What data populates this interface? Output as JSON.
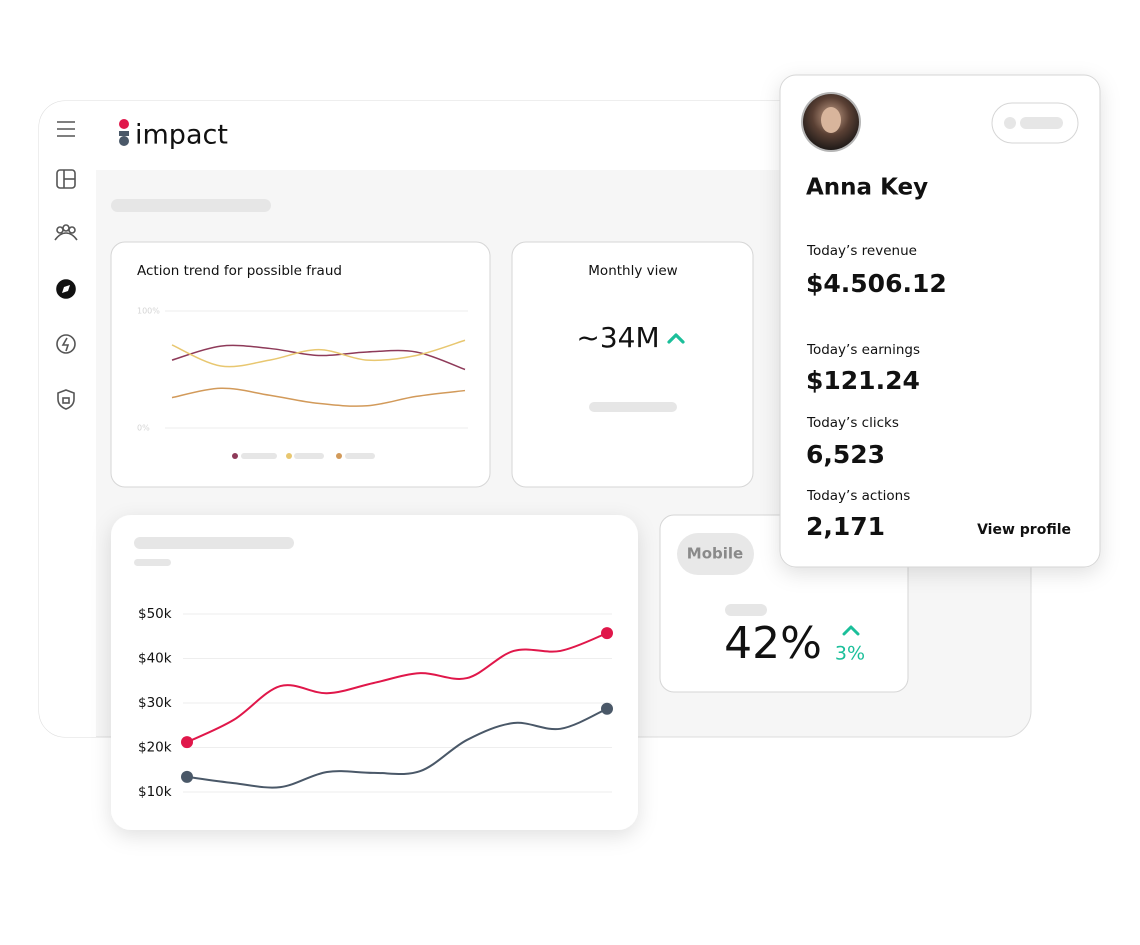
{
  "brand": "impact",
  "fraud_chart": {
    "type": "line",
    "title": "Action trend for possible fraud",
    "ylim": [
      0,
      100
    ],
    "yticks": [
      {
        "value": 0,
        "label": "0%"
      },
      {
        "value": 100,
        "label": "100%"
      }
    ],
    "series": [
      {
        "color": "#8e3a59",
        "values": [
          58,
          70,
          68,
          62,
          65,
          65,
          50
        ]
      },
      {
        "color": "#e8c770",
        "values": [
          71,
          53,
          58,
          67,
          58,
          62,
          75
        ]
      },
      {
        "color": "#d29a5a",
        "values": [
          26,
          34,
          28,
          21,
          19,
          27,
          32
        ]
      }
    ]
  },
  "monthly_view": {
    "title": "Monthly view",
    "value": "~34M"
  },
  "mobile": {
    "label": "Mobile",
    "value": "42%",
    "change": "3%"
  },
  "profile": {
    "name": "Anna Key",
    "stats": [
      {
        "label": "Today’s revenue",
        "value": "$4.506.12"
      },
      {
        "label": "Today’s earnings",
        "value": "$121.24"
      },
      {
        "label": "Today’s clicks",
        "value": "6,523"
      },
      {
        "label": "Today’s actions",
        "value": "2,171"
      }
    ],
    "link": "View profile"
  },
  "revenue_chart": {
    "type": "line",
    "ylim": [
      10000,
      50000
    ],
    "yticks": [
      {
        "value": 10000,
        "label": "$10k"
      },
      {
        "value": 20000,
        "label": "$20k"
      },
      {
        "value": 30000,
        "label": "$30k"
      },
      {
        "value": 40000,
        "label": "$40k"
      },
      {
        "value": 50000,
        "label": "$50k"
      }
    ],
    "series": [
      {
        "color": "#e0174a",
        "values": [
          21200,
          26200,
          33800,
          32200,
          34500,
          36700,
          35600,
          41700,
          41700,
          45700
        ]
      },
      {
        "color": "#4a5868",
        "values": [
          13400,
          12000,
          11100,
          14500,
          14300,
          14700,
          21700,
          25500,
          24200,
          28700
        ]
      }
    ]
  }
}
